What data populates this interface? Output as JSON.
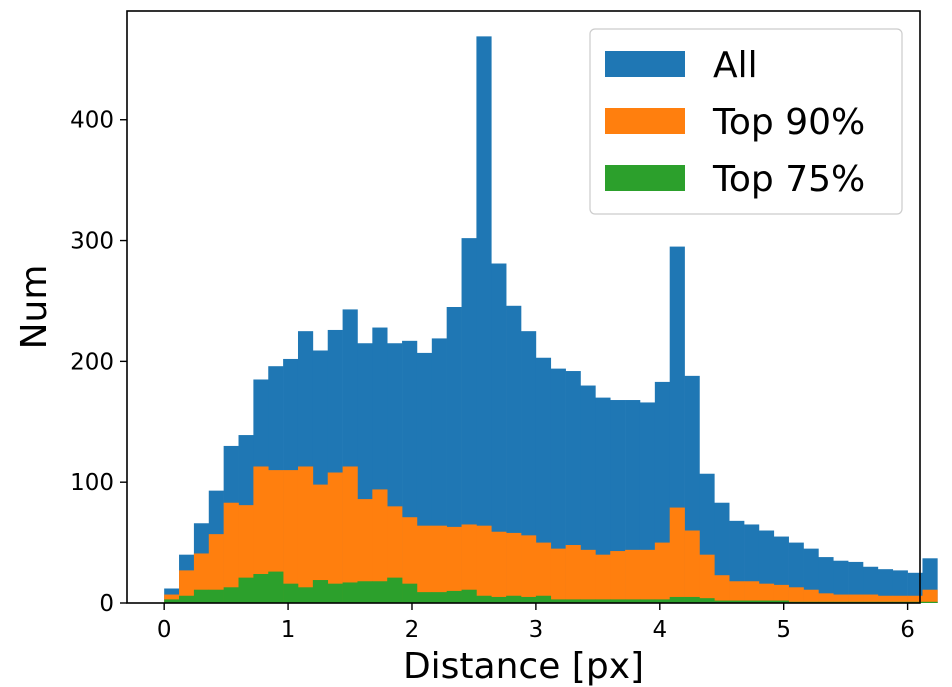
{
  "chart_data": {
    "type": "bar",
    "bins": {
      "start": 0.0,
      "width": 0.12,
      "edges_note": ""
    },
    "x_ticks": [
      "0",
      "1",
      "2",
      "3",
      "4",
      "5",
      "6"
    ],
    "y_ticks": [
      "0",
      "100",
      "200",
      "300",
      "400"
    ],
    "xlabel": "Distance [px]",
    "ylabel": "Num",
    "xlim": [
      -0.3,
      6.1
    ],
    "ylim": [
      0,
      490
    ],
    "grid": false,
    "legend_position": "top-right",
    "series": [
      {
        "name": "All",
        "color": "#1f77b4",
        "values": [
          12,
          40,
          66,
          93,
          130,
          139,
          185,
          196,
          202,
          225,
          209,
          226,
          243,
          215,
          228,
          215,
          217,
          207,
          219,
          245,
          302,
          469,
          281,
          246,
          225,
          203,
          194,
          192,
          180,
          170,
          168,
          168,
          166,
          183,
          295,
          188,
          107,
          83,
          68,
          65,
          60,
          55,
          50,
          45,
          38,
          35,
          34,
          30,
          28,
          27,
          25,
          37
        ]
      },
      {
        "name": "Top 90%",
        "color": "#ff7f0e",
        "values": [
          7,
          27,
          41,
          57,
          83,
          81,
          113,
          110,
          110,
          113,
          98,
          108,
          113,
          86,
          94,
          80,
          71,
          64,
          64,
          63,
          65,
          64,
          59,
          58,
          56,
          50,
          45,
          48,
          44,
          40,
          43,
          44,
          44,
          50,
          79,
          60,
          40,
          23,
          18,
          18,
          16,
          15,
          13,
          11,
          8,
          7,
          7,
          7,
          6,
          6,
          6,
          11
        ]
      },
      {
        "name": "Top 75%",
        "color": "#2ca02c",
        "values": [
          3,
          6,
          11,
          11,
          13,
          21,
          24,
          26,
          16,
          13,
          19,
          16,
          17,
          18,
          18,
          21,
          16,
          9,
          9,
          10,
          11,
          6,
          5,
          6,
          5,
          6,
          3,
          3,
          3,
          3,
          3,
          3,
          3,
          3,
          5,
          5,
          4,
          2,
          2,
          2,
          2,
          2,
          1,
          1,
          1,
          1,
          1,
          1,
          1,
          1,
          1,
          1
        ]
      }
    ]
  }
}
